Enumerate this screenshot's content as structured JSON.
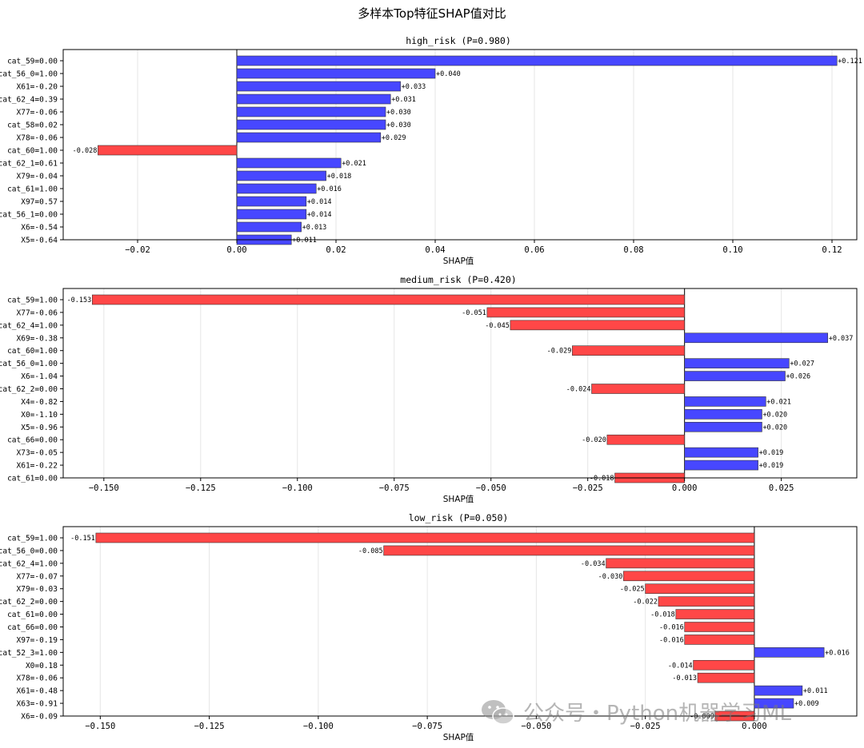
{
  "figure": {
    "title": "多样本Top特征SHAP值对比"
  },
  "colors": {
    "positive": "#4747ff",
    "negative": "#ff4747",
    "grid": "#e6e6e6"
  },
  "watermark": {
    "text": "公众号・Python机器学习ML",
    "icon": "wechat-icon"
  },
  "chart_data": [
    {
      "type": "bar",
      "orientation": "horizontal",
      "title": "high_risk (P=0.980)",
      "xlabel": "SHAP值",
      "xlim": [
        -0.035,
        0.125
      ],
      "xticks": [
        -0.02,
        0.0,
        0.02,
        0.04,
        0.06,
        0.08,
        0.1,
        0.12
      ],
      "xtick_labels": [
        "−0.02",
        "0.00",
        "0.02",
        "0.04",
        "0.06",
        "0.08",
        "0.10",
        "0.12"
      ],
      "grid": "x",
      "categories": [
        "cat_59=0.00",
        "cat_56_0=1.00",
        "X61=-0.20",
        "cat_62_4=0.39",
        "X77=-0.06",
        "cat_58=0.02",
        "X78=-0.06",
        "cat_60=1.00",
        "cat_62_1=0.61",
        "X79=-0.04",
        "cat_61=1.00",
        "X97=0.57",
        "cat_56_1=0.00",
        "X6=-0.54",
        "X5=-0.64"
      ],
      "values": [
        0.121,
        0.04,
        0.033,
        0.031,
        0.03,
        0.03,
        0.029,
        -0.028,
        0.021,
        0.018,
        0.016,
        0.014,
        0.014,
        0.013,
        0.011
      ],
      "value_labels": [
        "+0.121",
        "+0.040",
        "+0.033",
        "+0.031",
        "+0.030",
        "+0.030",
        "+0.029",
        "-0.028",
        "+0.021",
        "+0.018",
        "+0.016",
        "+0.014",
        "+0.014",
        "+0.013",
        "+0.011"
      ]
    },
    {
      "type": "bar",
      "orientation": "horizontal",
      "title": "medium_risk (P=0.420)",
      "xlabel": "SHAP值",
      "xlim": [
        -0.1605,
        0.0445
      ],
      "xticks": [
        -0.15,
        -0.125,
        -0.1,
        -0.075,
        -0.05,
        -0.025,
        0.0,
        0.025
      ],
      "xtick_labels": [
        "−0.150",
        "−0.125",
        "−0.100",
        "−0.075",
        "−0.050",
        "−0.025",
        "0.000",
        "0.025"
      ],
      "grid": "x",
      "categories": [
        "cat_59=1.00",
        "X77=-0.06",
        "cat_62_4=1.00",
        "X69=-0.38",
        "cat_60=1.00",
        "cat_56_0=1.00",
        "X6=-1.04",
        "cat_62_2=0.00",
        "X4=-0.82",
        "X0=-1.10",
        "X5=-0.96",
        "cat_66=0.00",
        "X73=-0.05",
        "X61=-0.22",
        "cat_61=0.00"
      ],
      "values": [
        -0.153,
        -0.051,
        -0.045,
        0.037,
        -0.029,
        0.027,
        0.026,
        -0.024,
        0.021,
        0.02,
        0.02,
        -0.02,
        0.019,
        0.019,
        -0.018
      ],
      "value_labels": [
        "-0.153",
        "-0.051",
        "-0.045",
        "+0.037",
        "-0.029",
        "+0.027",
        "+0.026",
        "-0.024",
        "+0.021",
        "+0.020",
        "+0.020",
        "-0.020",
        "+0.019",
        "+0.019",
        "-0.018"
      ]
    },
    {
      "type": "bar",
      "orientation": "horizontal",
      "title": "low_risk (P=0.050)",
      "xlabel": "SHAP值",
      "xlim": [
        -0.1585,
        0.0235
      ],
      "xticks": [
        -0.15,
        -0.125,
        -0.1,
        -0.075,
        -0.05,
        -0.025,
        0.0
      ],
      "xtick_labels": [
        "−0.150",
        "−0.125",
        "−0.100",
        "−0.075",
        "−0.050",
        "−0.025",
        "0.000"
      ],
      "grid": "x",
      "categories": [
        "cat_59=1.00",
        "cat_56_0=0.00",
        "cat_62_4=1.00",
        "X77=-0.07",
        "X79=-0.03",
        "cat_62_2=0.00",
        "cat_61=0.00",
        "cat_66=0.00",
        "X97=-0.19",
        "cat_52_3=1.00",
        "X0=0.18",
        "X78=-0.06",
        "X61=-0.48",
        "X63=-0.91",
        "X6=-0.09"
      ],
      "values": [
        -0.151,
        -0.085,
        -0.034,
        -0.03,
        -0.025,
        -0.022,
        -0.018,
        -0.016,
        -0.016,
        0.016,
        -0.014,
        -0.013,
        0.011,
        0.009,
        -0.009
      ],
      "value_labels": [
        "-0.151",
        "-0.085",
        "-0.034",
        "-0.030",
        "-0.025",
        "-0.022",
        "-0.018",
        "-0.016",
        "-0.016",
        "+0.016",
        "-0.014",
        "-0.013",
        "+0.011",
        "+0.009",
        "-0.009"
      ]
    }
  ]
}
